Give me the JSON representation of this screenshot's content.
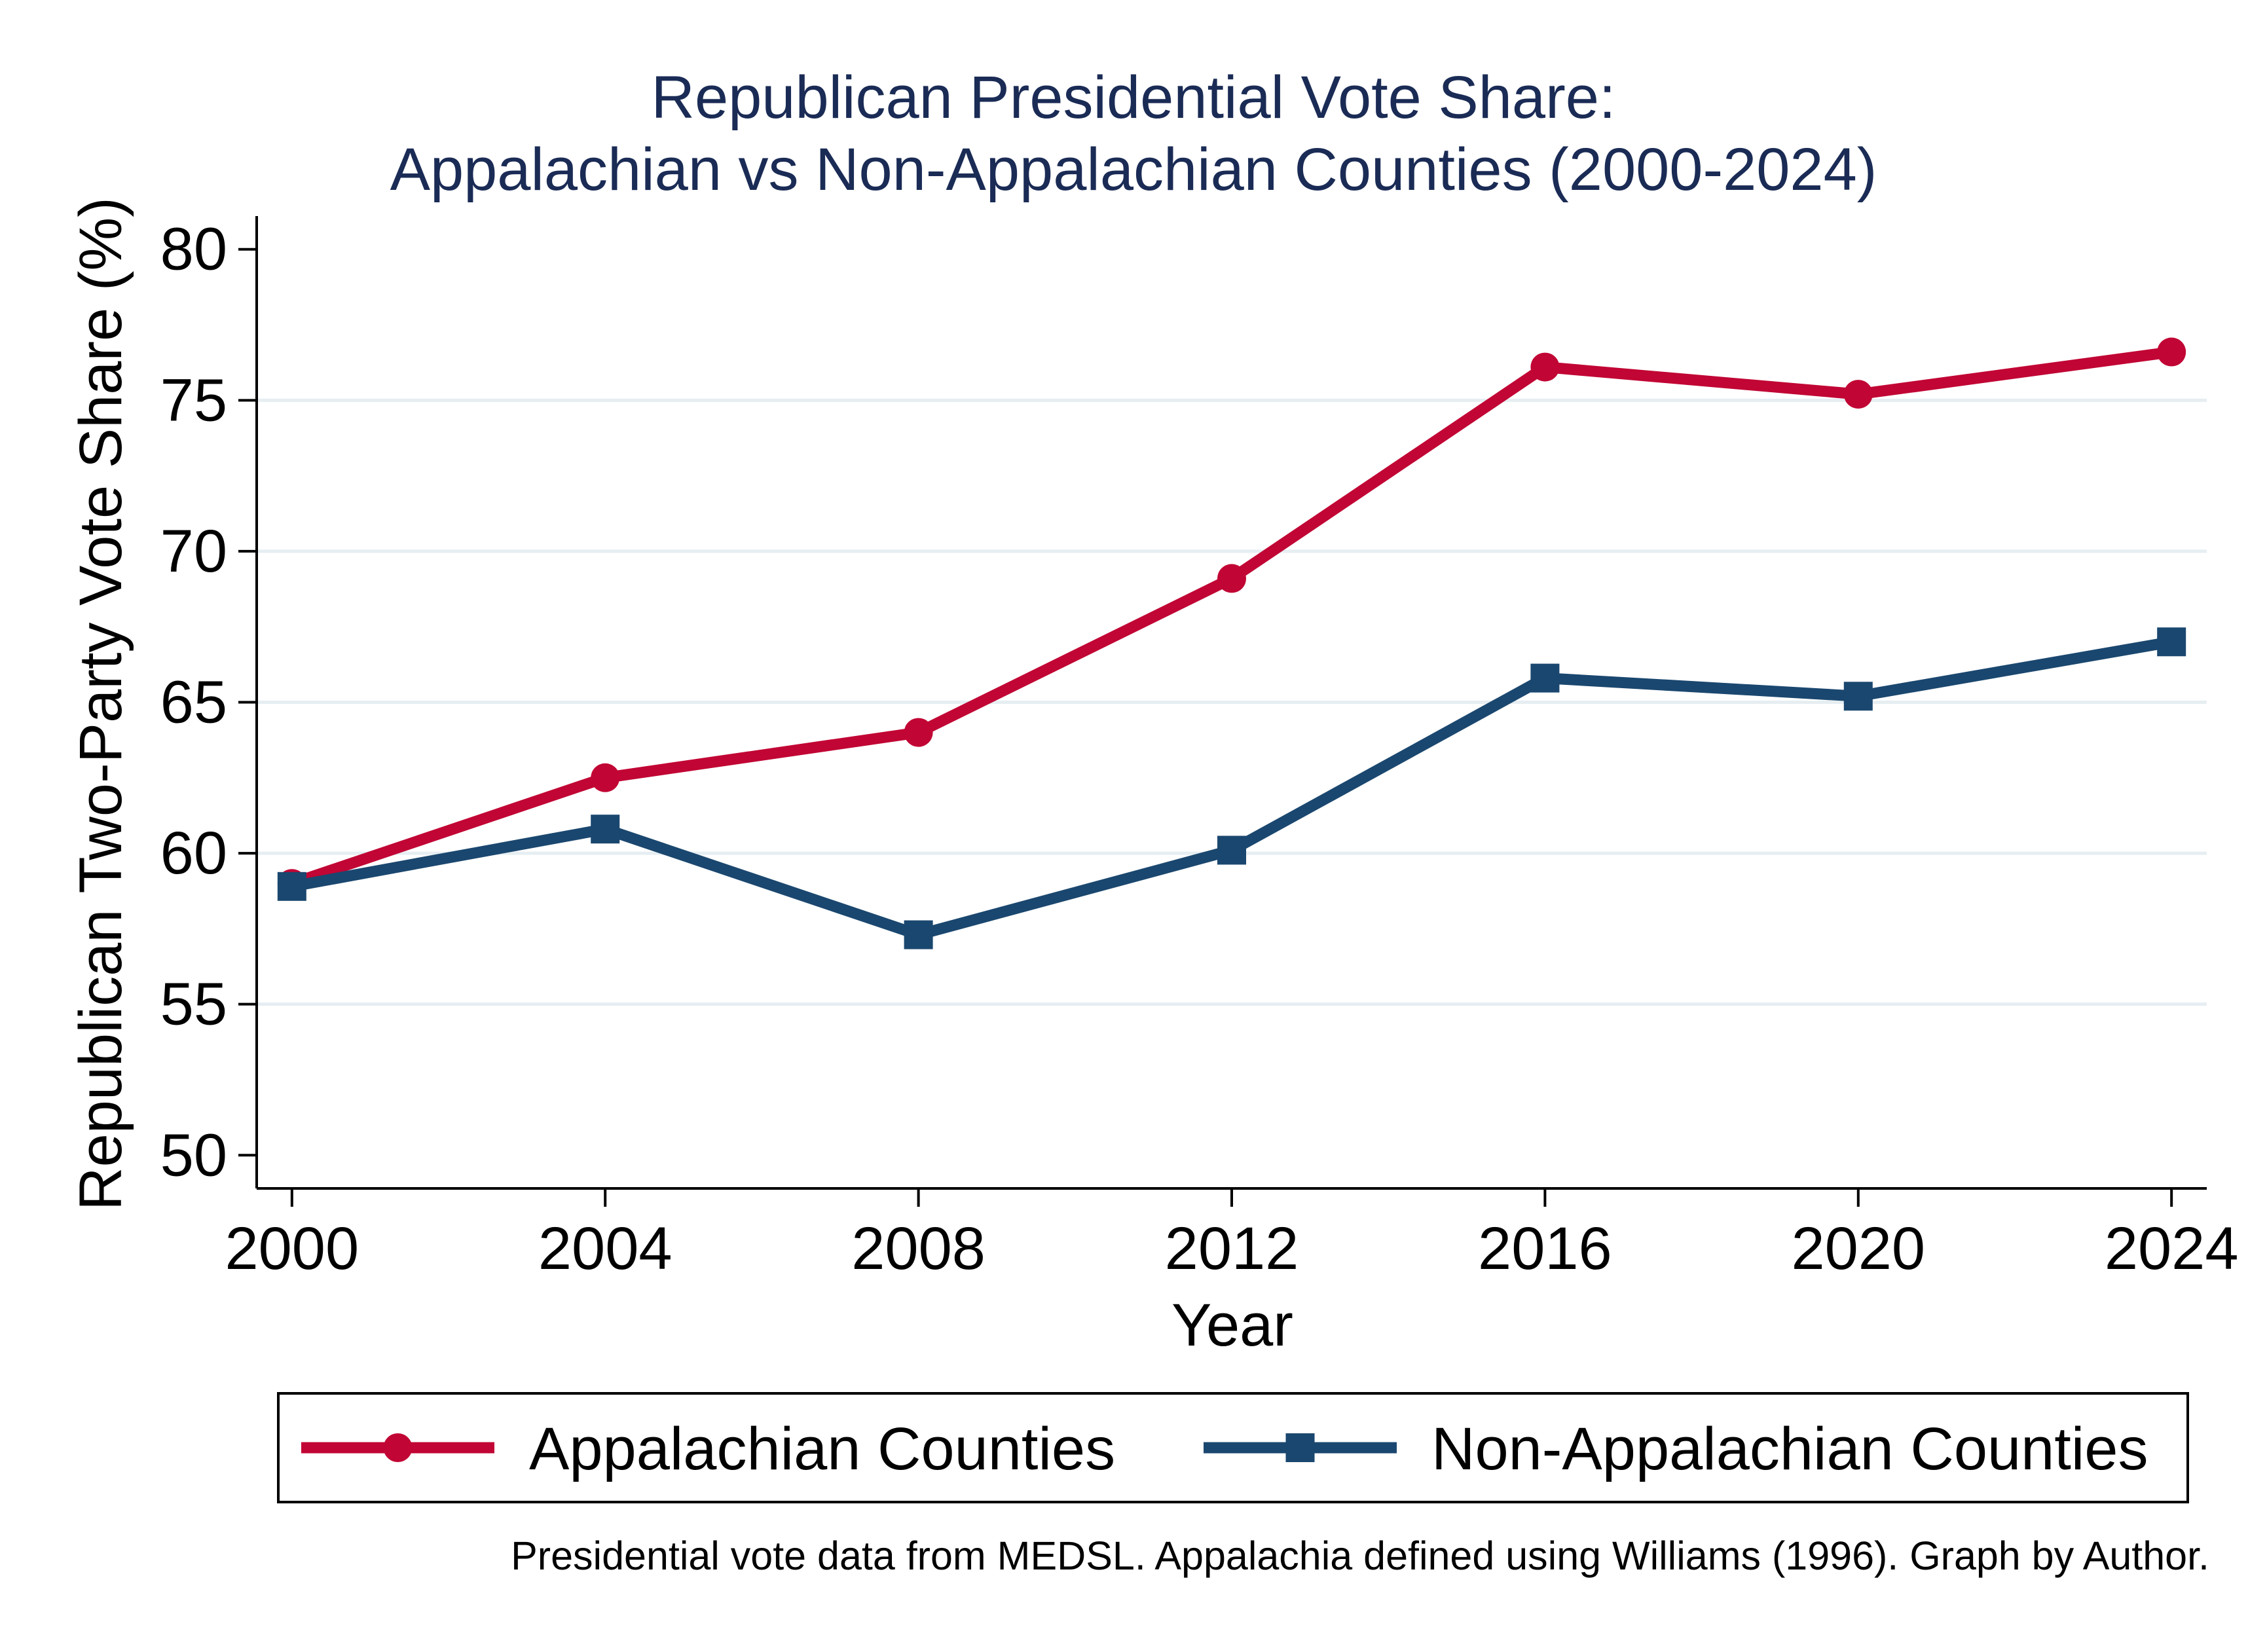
{
  "chart_data": {
    "type": "line",
    "title": "Republican Presidential Vote Share:",
    "subtitle": "Appalachian vs Non-Appalachian Counties (2000-2024)",
    "xlabel": "Year",
    "ylabel": "Republican Two-Party Vote Share (%)",
    "x": [
      2000,
      2004,
      2008,
      2012,
      2016,
      2020,
      2024
    ],
    "x_ticks": [
      "2000",
      "2004",
      "2008",
      "2012",
      "2016",
      "2020",
      "2024"
    ],
    "y_ticks": [
      "50",
      "55",
      "60",
      "65",
      "70",
      "75",
      "80"
    ],
    "ylim": [
      48.9,
      81.1
    ],
    "xlim": [
      1999.55,
      2024.45
    ],
    "grid": "horizontal",
    "legend_position": "bottom",
    "series": [
      {
        "name": "Appalachian Counties",
        "values": [
          59.0,
          62.5,
          64.0,
          69.1,
          76.1,
          75.2,
          76.6
        ],
        "color": "#c10534",
        "marker": "circle"
      },
      {
        "name": "Non-Appalachian Counties",
        "values": [
          58.9,
          60.8,
          57.3,
          60.1,
          65.8,
          65.2,
          67.0
        ],
        "color": "#1a476f",
        "marker": "square"
      }
    ],
    "note": "Presidential vote data from MEDSL. Appalachia defined using Williams (1996). Graph by Author.",
    "colors": {
      "title": "#1a2b55",
      "grid": "#e6eef2",
      "axis": "#000000"
    }
  }
}
